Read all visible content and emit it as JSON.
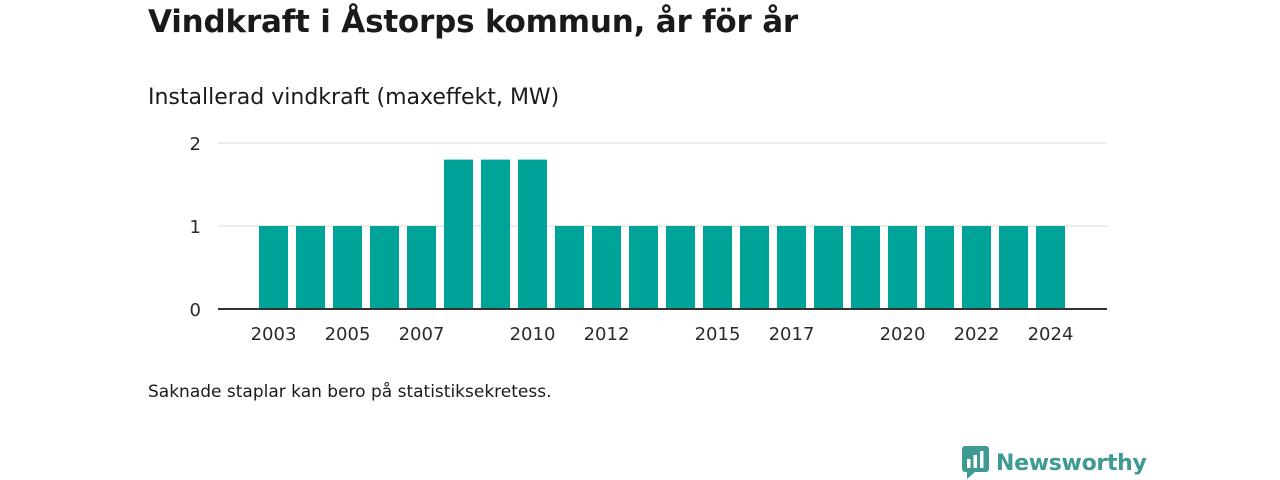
{
  "title": "Vindkraft i Åstorps kommun, år för år",
  "note": "Saknade staplar kan bero på statistiksekretess.",
  "brand": {
    "name": "Newsworthy",
    "icon": "newsworthy-logo-icon",
    "color": "#3d9b94"
  },
  "chart_data": {
    "type": "bar",
    "title": "Installerad vindkraft (maxeffekt, MW)",
    "xlabel": "",
    "ylabel": "",
    "bar_color": "#00a398",
    "categories": [
      2003,
      2004,
      2005,
      2006,
      2007,
      2008,
      2009,
      2010,
      2011,
      2012,
      2013,
      2014,
      2015,
      2016,
      2017,
      2018,
      2019,
      2020,
      2021,
      2022,
      2023,
      2024
    ],
    "values": [
      1,
      1,
      1,
      1,
      1,
      1.8,
      1.8,
      1.8,
      1,
      1,
      1,
      1,
      1,
      1,
      1,
      1,
      1,
      1,
      1,
      1,
      1,
      1
    ],
    "x_tick_labels": [
      "2003",
      "2005",
      "2007",
      "2010",
      "2012",
      "2015",
      "2017",
      "2020",
      "2022",
      "2024"
    ],
    "y_ticks": [
      0,
      1,
      2
    ],
    "ylim": [
      0,
      2
    ],
    "grid": true
  }
}
